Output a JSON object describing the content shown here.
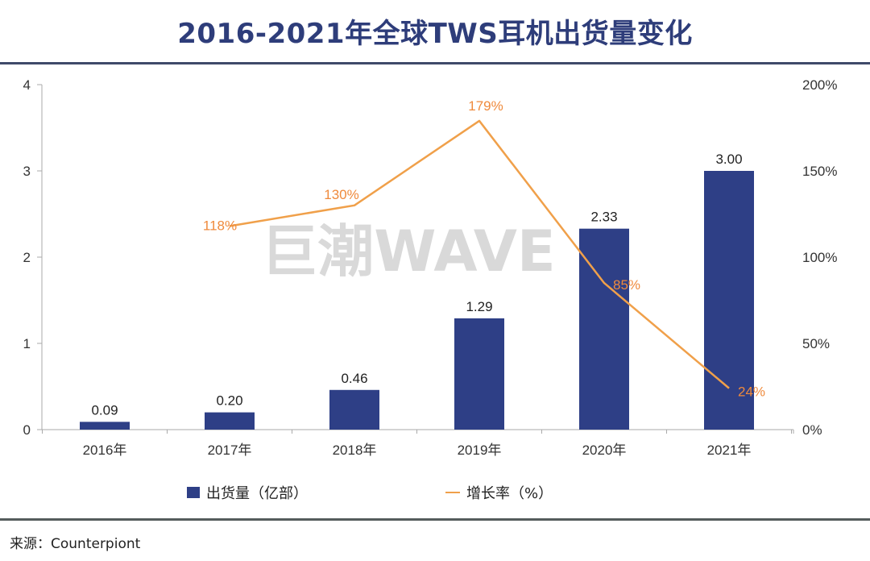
{
  "chart_data": {
    "type": "bar",
    "title": "2016-2021年全球TWS耳机出货量变化",
    "categories": [
      "2016年",
      "2017年",
      "2018年",
      "2019年",
      "2020年",
      "2021年"
    ],
    "series": [
      {
        "name": "出货量（亿部）",
        "type": "bar",
        "axis": "left",
        "color": "#2e3f86",
        "values": [
          0.09,
          0.2,
          0.46,
          1.29,
          2.33,
          3.0
        ],
        "labels": [
          "0.09",
          "0.20",
          "0.46",
          "1.29",
          "2.33",
          "3.00"
        ]
      },
      {
        "name": "增长率（%）",
        "type": "line",
        "axis": "right",
        "color": "#f0a04a",
        "x_start_index": 1,
        "values": [
          118,
          130,
          179,
          85,
          24
        ],
        "labels": [
          "118%",
          "130%",
          "179%",
          "85%",
          "24%"
        ]
      }
    ],
    "y_left": {
      "ylim": [
        0,
        4
      ],
      "ticks": [
        0,
        1,
        2,
        3,
        4
      ],
      "tick_labels": [
        "0",
        "1",
        "2",
        "3",
        "4"
      ]
    },
    "y_right": {
      "ylim": [
        0,
        200
      ],
      "ticks": [
        0,
        50,
        100,
        150,
        200
      ],
      "tick_labels": [
        "0%",
        "50%",
        "100%",
        "150%",
        "200%"
      ]
    },
    "xlabel": "",
    "ylabel": "",
    "grid": false,
    "legend": "bottom",
    "watermark": "巨潮WAVE"
  },
  "legend": {
    "bar_label": "出货量（亿部）",
    "line_label": "增长率（%）"
  },
  "source": "来源：Counterpiont"
}
